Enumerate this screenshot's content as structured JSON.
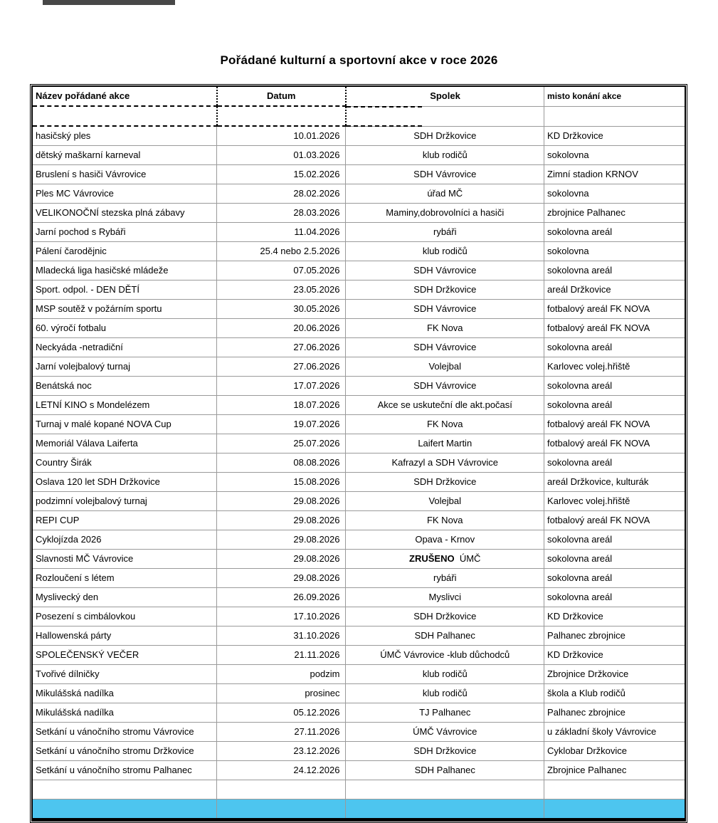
{
  "document": {
    "title": "Pořádané kulturní a sportovní akce v roce 2026"
  },
  "table": {
    "headers": [
      "Název pořádané akce",
      "Datum",
      "Spolek",
      "misto konání akce"
    ],
    "highlight_color": "#4dc5ef",
    "rows": [
      {
        "nazev": "hasičský ples",
        "datum": "10.01.2026",
        "spolek": "SDH Držkovice",
        "misto": "KD Držkovice"
      },
      {
        "nazev": "dětský maškarní karneval",
        "datum": "01.03.2026",
        "spolek": "klub rodičů",
        "misto": "sokolovna"
      },
      {
        "nazev": "Bruslení s hasiči Vávrovice",
        "datum": "15.02.2026",
        "spolek": "SDH Vávrovice",
        "misto": "Zimní stadion KRNOV"
      },
      {
        "nazev": "Ples MC Vávrovice",
        "datum": "28.02.2026",
        "spolek": "úřad MČ",
        "misto": "sokolovna"
      },
      {
        "nazev": "VELIKONOČNÍ stezska plná zábavy",
        "datum": "28.03.2026",
        "spolek": "Maminy,dobrovolníci a hasiči",
        "misto": "zbrojnice Palhanec"
      },
      {
        "nazev": "Jarní pochod s Rybáři",
        "datum": "11.04.2026",
        "spolek": "rybáři",
        "misto": "sokolovna  areál"
      },
      {
        "nazev": "Pálení čarodějnic",
        "datum": "25.4 nebo 2.5.2026",
        "spolek": "klub rodičů",
        "misto": "sokolovna"
      },
      {
        "nazev": "Mladecká liga hasičské mládeže",
        "datum": "07.05.2026",
        "spolek": "SDH Vávrovice",
        "misto": "sokolovna areál"
      },
      {
        "nazev": "Sport. odpol. - DEN DĚTÍ",
        "datum": "23.05.2026",
        "spolek": "SDH Držkovice",
        "misto": "areál Držkovice"
      },
      {
        "nazev": "MSP soutěž v požárním sportu",
        "datum": "30.05.2026",
        "spolek": "SDH Vávrovice",
        "misto": "fotbalový areál FK NOVA"
      },
      {
        "nazev": "60. výročí fotbalu",
        "datum": "20.06.2026",
        "spolek": "FK Nova",
        "misto": "fotbalový areál FK NOVA"
      },
      {
        "nazev": "Neckyáda  -netradiční",
        "datum": "27.06.2026",
        "spolek": "SDH Vávrovice",
        "misto": "sokolovna areál"
      },
      {
        "nazev": "Jarní volejbalový turnaj",
        "datum": "27.06.2026",
        "spolek": "Volejbal",
        "misto": "Karlovec volej.hřiště"
      },
      {
        "nazev": "Benátská noc",
        "datum": "17.07.2026",
        "spolek": "SDH Vávrovice",
        "misto": "sokolovna areál"
      },
      {
        "nazev": "LETNÍ KINO s Mondelézem",
        "datum": "18.07.2026",
        "spolek": "Akce se uskuteční dle akt.počasí",
        "misto": "sokolovna areál"
      },
      {
        "nazev": "Turnaj v malé kopané NOVA Cup",
        "datum": "19.07.2026",
        "spolek": "FK Nova",
        "misto": "fotbalový areál FK NOVA"
      },
      {
        "nazev": "Memoriál Válava Laiferta",
        "datum": "25.07.2026",
        "spolek": "Laifert Martin",
        "misto": "fotbalový areál FK NOVA"
      },
      {
        "nazev": "Country Širák",
        "datum": "08.08.2026",
        "spolek": "Kafrazyl a SDH Vávrovice",
        "misto": "sokolovna areál"
      },
      {
        "nazev": "Oslava 120 let SDH  Držkovice",
        "datum": "15.08.2026",
        "spolek": "SDH Držkovice",
        "misto": "areál Držkovice, kulturák"
      },
      {
        "nazev": "podzimní volejbalový turnaj",
        "datum": "29.08.2026",
        "spolek": "Volejbal",
        "misto": "Karlovec volej.hřiště"
      },
      {
        "nazev": "REPI CUP",
        "datum": "29.08.2026",
        "spolek": "FK Nova",
        "misto": "fotbalový areál FK NOVA"
      },
      {
        "nazev": "Cyklojízda 2026",
        "datum": "29.08.2026",
        "spolek": "Opava - Krnov",
        "misto": "sokolovna areál"
      },
      {
        "nazev": "Slavnosti MČ Vávrovice",
        "datum": "29.08.2026",
        "spolek_bold": "ZRUŠENO",
        "spolek": "ÚMČ",
        "misto": "sokolovna areál"
      },
      {
        "nazev": "Rozloučení s létem",
        "datum": "29.08.2026",
        "spolek": "rybáři",
        "misto": "sokolovna areál"
      },
      {
        "nazev": "Myslivecký den",
        "datum": "26.09.2026",
        "spolek": "Myslivci",
        "misto": "sokolovna areál"
      },
      {
        "nazev": "Posezení s cimbálovkou",
        "datum": "17.10.2026",
        "spolek": "SDH Držkovice",
        "misto": "KD Držkovice"
      },
      {
        "nazev": "Hallowenská párty",
        "datum": "31.10.2026",
        "spolek": "SDH Palhanec",
        "misto": "Palhanec zbrojnice"
      },
      {
        "nazev": "SPOLEČENSKÝ VEČER",
        "datum": "21.11.2026",
        "spolek": "ÚMČ Vávrovice -klub důchodců",
        "misto": "KD Držkovice"
      },
      {
        "nazev": "Tvořivé dílničky",
        "datum": "podzim",
        "spolek": "klub rodičů",
        "misto": "Zbrojnice Držkovice"
      },
      {
        "nazev": "Mikulášská nadílka",
        "datum": "prosinec",
        "spolek": "klub rodičů",
        "misto": "škola a Klub rodičů"
      },
      {
        "nazev": "Mikulášská nadílka",
        "datum": "05.12.2026",
        "spolek": "TJ Palhanec",
        "misto": "Palhanec zbrojnice"
      },
      {
        "nazev": "Setkání u vánočního stromu Vávrovice",
        "datum": "27.11.2026",
        "spolek": "ÚMČ Vávrovice",
        "misto": "u základní školy Vávrovice"
      },
      {
        "nazev": "Setkání u vánočního stromu Držkovice",
        "datum": "23.12.2026",
        "spolek": "SDH Držkovice",
        "misto": "Cyklobar Držkovice"
      },
      {
        "nazev": "Setkání u vánočního stromu Palhanec",
        "datum": "24.12.2026",
        "spolek": "SDH Palhanec",
        "misto": "Zbrojnice Palhanec"
      },
      {
        "nazev": "",
        "datum": "",
        "spolek": "",
        "misto": ""
      },
      {
        "nazev": "",
        "datum": "",
        "spolek": "",
        "misto": "",
        "highlight": true
      }
    ]
  }
}
